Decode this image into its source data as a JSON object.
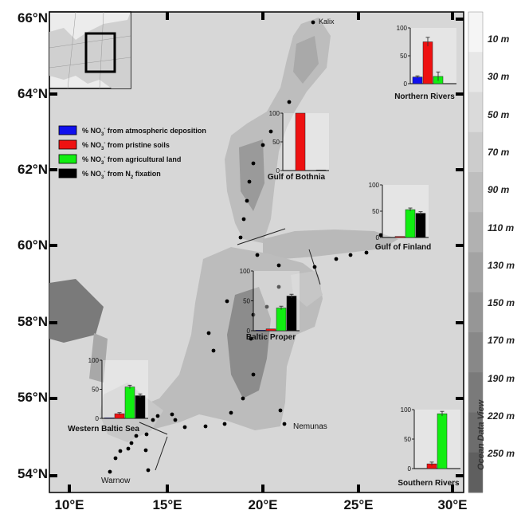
{
  "axes": {
    "latitudes": [
      "66°N",
      "64°N",
      "62°N",
      "60°N",
      "58°N",
      "56°N",
      "54°N"
    ],
    "longitudes": [
      "10°E",
      "15°E",
      "20°E",
      "25°E",
      "30°E"
    ]
  },
  "depth_scale": {
    "labels": [
      "10 m",
      "30 m",
      "50 m",
      "70 m",
      "90 m",
      "110 m",
      "130 m",
      "150 m",
      "170 m",
      "190 m",
      "220 m",
      "250 m"
    ],
    "credit": "Ocean Data View"
  },
  "place_labels": {
    "kalix": "Kalix",
    "nemunas": "Nemunas",
    "warnow": "Warnow"
  },
  "legend": [
    {
      "key": "atm",
      "prefix": "% NO",
      "sub": "3",
      "sup": "-",
      "rest": " from atmospheric deposition",
      "color": "#1010ee"
    },
    {
      "key": "soil",
      "prefix": "% NO",
      "sub": "3",
      "sup": "-",
      "rest": " from pristine soils",
      "color": "#ee1111"
    },
    {
      "key": "agri",
      "prefix": "% NO",
      "sub": "3",
      "sup": "-",
      "rest": " from agricultural land",
      "color": "#11ee11"
    },
    {
      "key": "fix",
      "prefix": "% NO",
      "sub": "3",
      "sup": "-",
      "rest": " from N",
      "sub2": "2",
      "rest2": " fixation",
      "color": "#000000"
    }
  ],
  "chart_data": [
    {
      "type": "bar",
      "title": "Northern Rivers",
      "ylim": [
        0,
        100
      ],
      "ticks": [
        "100",
        "50",
        "0"
      ],
      "categories": [
        "atmospheric deposition",
        "pristine soils",
        "agricultural land",
        "N2 fixation"
      ],
      "values": [
        12,
        75,
        13,
        0
      ],
      "errors": [
        2,
        8,
        8,
        0
      ]
    },
    {
      "type": "bar",
      "title": "Gulf of Bothnia",
      "ylim": [
        0,
        100
      ],
      "ticks": [
        "100",
        "50",
        "0"
      ],
      "categories": [
        "atmospheric deposition",
        "pristine soils",
        "agricultural land",
        "N2 fixation"
      ],
      "values": [
        0,
        100,
        0,
        1
      ],
      "errors": [
        0,
        0,
        0,
        0
      ]
    },
    {
      "type": "bar",
      "title": "Gulf of Finland",
      "ylim": [
        0,
        100
      ],
      "ticks": [
        "100",
        "50",
        "0"
      ],
      "categories": [
        "atmospheric deposition",
        "pristine soils",
        "agricultural land",
        "N2 fixation"
      ],
      "values": [
        0,
        2,
        53,
        46
      ],
      "errors": [
        0,
        0,
        3,
        3
      ]
    },
    {
      "type": "bar",
      "title": "Baltic Proper",
      "ylim": [
        0,
        100
      ],
      "ticks": [
        "100",
        "50",
        "0"
      ],
      "categories": [
        "atmospheric deposition",
        "pristine soils",
        "agricultural land",
        "N2 fixation"
      ],
      "values": [
        1,
        3,
        38,
        58
      ],
      "errors": [
        0,
        0,
        3,
        3
      ]
    },
    {
      "type": "bar",
      "title": "Western Baltic Sea",
      "ylim": [
        0,
        100
      ],
      "ticks": [
        "100",
        "50",
        "0"
      ],
      "categories": [
        "atmospheric deposition",
        "pristine soils",
        "agricultural land",
        "N2 fixation"
      ],
      "values": [
        1,
        8,
        54,
        39
      ],
      "errors": [
        0,
        2,
        3,
        3
      ]
    },
    {
      "type": "bar",
      "title": "Southern Rivers",
      "ylim": [
        0,
        100
      ],
      "ticks": [
        "100",
        "50",
        "0"
      ],
      "categories": [
        "atmospheric deposition",
        "pristine soils",
        "agricultural land",
        "N2 fixation"
      ],
      "values": [
        0,
        8,
        93,
        0
      ],
      "errors": [
        0,
        3,
        4,
        0
      ]
    }
  ]
}
